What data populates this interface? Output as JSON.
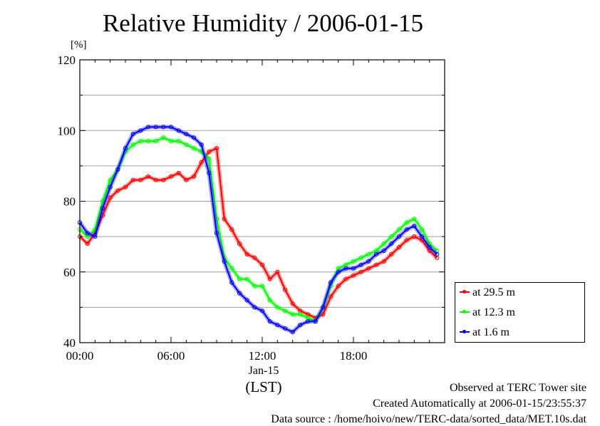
{
  "chart_data": {
    "type": "line",
    "title": "Relative Humidity / 2006-01-15",
    "ylabel": "[%]",
    "xlabel": "(LST)",
    "x_date_label": "Jan-15",
    "ylim": [
      40,
      120
    ],
    "yticks": [
      40,
      60,
      80,
      100,
      120
    ],
    "xlim": [
      "00:00",
      "24:00"
    ],
    "xticks": [
      "00:00",
      "06:00",
      "12:00",
      "18:00"
    ],
    "grid": true,
    "legend_position": "bottom-right",
    "x_hours": [
      0,
      0.5,
      1,
      1.5,
      2,
      2.5,
      3,
      3.5,
      4,
      4.5,
      5,
      5.5,
      6,
      6.5,
      7,
      7.5,
      8,
      8.5,
      9,
      9.5,
      10,
      10.5,
      11,
      11.5,
      12,
      12.5,
      13,
      13.5,
      14,
      14.5,
      15,
      15.5,
      16,
      16.5,
      17,
      17.5,
      18,
      18.5,
      19,
      19.5,
      20,
      20.5,
      21,
      21.5,
      22,
      22.5,
      23,
      23.5
    ],
    "series": [
      {
        "name": "at 29.5 m",
        "color": "#ff0000",
        "values": [
          70,
          68,
          71,
          76,
          81,
          83,
          84,
          86,
          86,
          87,
          86,
          86,
          87,
          88,
          86,
          87,
          91,
          94,
          95,
          75,
          72,
          68,
          65,
          64,
          62,
          58,
          60,
          55,
          51,
          49,
          48,
          47,
          48,
          53,
          56,
          58,
          59,
          60,
          61,
          62,
          63,
          65,
          67,
          69,
          70,
          69,
          66,
          64
        ]
      },
      {
        "name": "at 12.3 m",
        "color": "#00ff00",
        "values": [
          72,
          70,
          72,
          80,
          86,
          89,
          94,
          96,
          97,
          97,
          97,
          98,
          97,
          97,
          96,
          95,
          94,
          92,
          75,
          64,
          61,
          58,
          58,
          56,
          56,
          52,
          50,
          49,
          48,
          48,
          47,
          46,
          50,
          56,
          61,
          62,
          63,
          64,
          65,
          66,
          68,
          70,
          72,
          74,
          75,
          72,
          68,
          66
        ]
      },
      {
        "name": "at 1.6 m",
        "color": "#0000ff",
        "values": [
          74,
          71,
          70,
          78,
          84,
          89,
          95,
          99,
          100,
          101,
          101,
          101,
          101,
          100,
          99,
          98,
          96,
          88,
          71,
          63,
          57,
          54,
          52,
          50,
          49,
          46,
          45,
          44,
          43,
          45,
          46,
          46,
          50,
          57,
          60,
          61,
          61,
          62,
          63,
          65,
          66,
          68,
          70,
          72,
          73,
          70,
          67,
          65
        ]
      }
    ]
  },
  "footer": {
    "line1": "Observed at TERC Tower site",
    "line2": "Created Automatically at 2006-01-15/23:55:37",
    "line3": "Data source : /home/hoivo/new/TERC-data/sorted_data/MET.10s.dat"
  }
}
